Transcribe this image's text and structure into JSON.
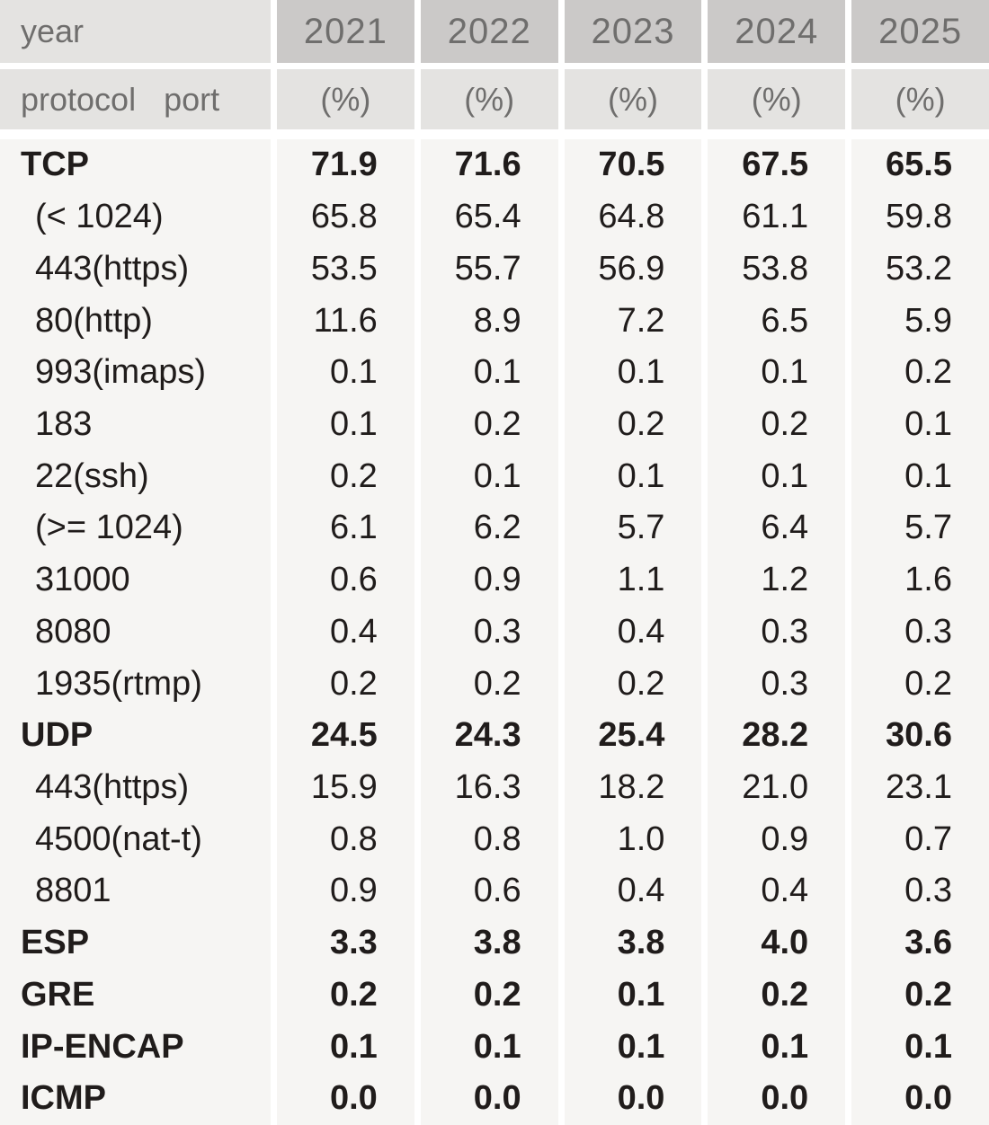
{
  "colors": {
    "header_dark_bg": "#cbc9c8",
    "header_light_bg": "#e4e3e1",
    "data_bg": "#f6f5f3",
    "gutter": "#ffffff",
    "header_text": "#6f6e6d",
    "data_text": "#201c1b"
  },
  "table": {
    "header": {
      "year_label": "year",
      "protocol_label": "protocol",
      "port_label": "port",
      "years": [
        "2021",
        "2022",
        "2023",
        "2024",
        "2025"
      ],
      "unit": "(%)"
    },
    "rows": [
      {
        "label": "TCP",
        "bold": true,
        "indent": false,
        "values": [
          "71.9",
          "71.6",
          "70.5",
          "67.5",
          "65.5"
        ]
      },
      {
        "label": "(< 1024)",
        "bold": false,
        "indent": true,
        "values": [
          "65.8",
          "65.4",
          "64.8",
          "61.1",
          "59.8"
        ]
      },
      {
        "label": "443(https)",
        "bold": false,
        "indent": true,
        "values": [
          "53.5",
          "55.7",
          "56.9",
          "53.8",
          "53.2"
        ]
      },
      {
        "label": "80(http)",
        "bold": false,
        "indent": true,
        "values": [
          "11.6",
          "8.9",
          "7.2",
          "6.5",
          "5.9"
        ]
      },
      {
        "label": "993(imaps)",
        "bold": false,
        "indent": true,
        "values": [
          "0.1",
          "0.1",
          "0.1",
          "0.1",
          "0.2"
        ]
      },
      {
        "label": "183",
        "bold": false,
        "indent": true,
        "values": [
          "0.1",
          "0.2",
          "0.2",
          "0.2",
          "0.1"
        ]
      },
      {
        "label": "22(ssh)",
        "bold": false,
        "indent": true,
        "values": [
          "0.2",
          "0.1",
          "0.1",
          "0.1",
          "0.1"
        ]
      },
      {
        "label": "(>= 1024)",
        "bold": false,
        "indent": true,
        "values": [
          "6.1",
          "6.2",
          "5.7",
          "6.4",
          "5.7"
        ]
      },
      {
        "label": "31000",
        "bold": false,
        "indent": true,
        "values": [
          "0.6",
          "0.9",
          "1.1",
          "1.2",
          "1.6"
        ]
      },
      {
        "label": "8080",
        "bold": false,
        "indent": true,
        "values": [
          "0.4",
          "0.3",
          "0.4",
          "0.3",
          "0.3"
        ]
      },
      {
        "label": "1935(rtmp)",
        "bold": false,
        "indent": true,
        "values": [
          "0.2",
          "0.2",
          "0.2",
          "0.3",
          "0.2"
        ]
      },
      {
        "label": "UDP",
        "bold": true,
        "indent": false,
        "values": [
          "24.5",
          "24.3",
          "25.4",
          "28.2",
          "30.6"
        ]
      },
      {
        "label": "443(https)",
        "bold": false,
        "indent": true,
        "values": [
          "15.9",
          "16.3",
          "18.2",
          "21.0",
          "23.1"
        ]
      },
      {
        "label": "4500(nat-t)",
        "bold": false,
        "indent": true,
        "values": [
          "0.8",
          "0.8",
          "1.0",
          "0.9",
          "0.7"
        ]
      },
      {
        "label": "8801",
        "bold": false,
        "indent": true,
        "values": [
          "0.9",
          "0.6",
          "0.4",
          "0.4",
          "0.3"
        ]
      },
      {
        "label": "ESP",
        "bold": true,
        "indent": false,
        "values": [
          "3.3",
          "3.8",
          "3.8",
          "4.0",
          "3.6"
        ]
      },
      {
        "label": "GRE",
        "bold": true,
        "indent": false,
        "values": [
          "0.2",
          "0.2",
          "0.1",
          "0.2",
          "0.2"
        ]
      },
      {
        "label": "IP-ENCAP",
        "bold": true,
        "indent": false,
        "values": [
          "0.1",
          "0.1",
          "0.1",
          "0.1",
          "0.1"
        ]
      },
      {
        "label": "ICMP",
        "bold": true,
        "indent": false,
        "values": [
          "0.0",
          "0.0",
          "0.0",
          "0.0",
          "0.0"
        ]
      }
    ]
  },
  "chart_data": {
    "type": "table",
    "title": "Protocol / port share by year (%)",
    "categories": [
      "2021",
      "2022",
      "2023",
      "2024",
      "2025"
    ],
    "unit": "%",
    "series": [
      {
        "name": "TCP",
        "level": "protocol",
        "values": [
          71.9,
          71.6,
          70.5,
          67.5,
          65.5
        ]
      },
      {
        "name": "(< 1024)",
        "level": "port",
        "parent": "TCP",
        "values": [
          65.8,
          65.4,
          64.8,
          61.1,
          59.8
        ]
      },
      {
        "name": "443(https)",
        "level": "port",
        "parent": "TCP",
        "values": [
          53.5,
          55.7,
          56.9,
          53.8,
          53.2
        ]
      },
      {
        "name": "80(http)",
        "level": "port",
        "parent": "TCP",
        "values": [
          11.6,
          8.9,
          7.2,
          6.5,
          5.9
        ]
      },
      {
        "name": "993(imaps)",
        "level": "port",
        "parent": "TCP",
        "values": [
          0.1,
          0.1,
          0.1,
          0.1,
          0.2
        ]
      },
      {
        "name": "183",
        "level": "port",
        "parent": "TCP",
        "values": [
          0.1,
          0.2,
          0.2,
          0.2,
          0.1
        ]
      },
      {
        "name": "22(ssh)",
        "level": "port",
        "parent": "TCP",
        "values": [
          0.2,
          0.1,
          0.1,
          0.1,
          0.1
        ]
      },
      {
        "name": "(>= 1024)",
        "level": "port",
        "parent": "TCP",
        "values": [
          6.1,
          6.2,
          5.7,
          6.4,
          5.7
        ]
      },
      {
        "name": "31000",
        "level": "port",
        "parent": "TCP",
        "values": [
          0.6,
          0.9,
          1.1,
          1.2,
          1.6
        ]
      },
      {
        "name": "8080",
        "level": "port",
        "parent": "TCP",
        "values": [
          0.4,
          0.3,
          0.4,
          0.3,
          0.3
        ]
      },
      {
        "name": "1935(rtmp)",
        "level": "port",
        "parent": "TCP",
        "values": [
          0.2,
          0.2,
          0.2,
          0.3,
          0.2
        ]
      },
      {
        "name": "UDP",
        "level": "protocol",
        "values": [
          24.5,
          24.3,
          25.4,
          28.2,
          30.6
        ]
      },
      {
        "name": "443(https)",
        "level": "port",
        "parent": "UDP",
        "values": [
          15.9,
          16.3,
          18.2,
          21.0,
          23.1
        ]
      },
      {
        "name": "4500(nat-t)",
        "level": "port",
        "parent": "UDP",
        "values": [
          0.8,
          0.8,
          1.0,
          0.9,
          0.7
        ]
      },
      {
        "name": "8801",
        "level": "port",
        "parent": "UDP",
        "values": [
          0.9,
          0.6,
          0.4,
          0.4,
          0.3
        ]
      },
      {
        "name": "ESP",
        "level": "protocol",
        "values": [
          3.3,
          3.8,
          3.8,
          4.0,
          3.6
        ]
      },
      {
        "name": "GRE",
        "level": "protocol",
        "values": [
          0.2,
          0.2,
          0.1,
          0.2,
          0.2
        ]
      },
      {
        "name": "IP-ENCAP",
        "level": "protocol",
        "values": [
          0.1,
          0.1,
          0.1,
          0.1,
          0.1
        ]
      },
      {
        "name": "ICMP",
        "level": "protocol",
        "values": [
          0.0,
          0.0,
          0.0,
          0.0,
          0.0
        ]
      }
    ]
  }
}
